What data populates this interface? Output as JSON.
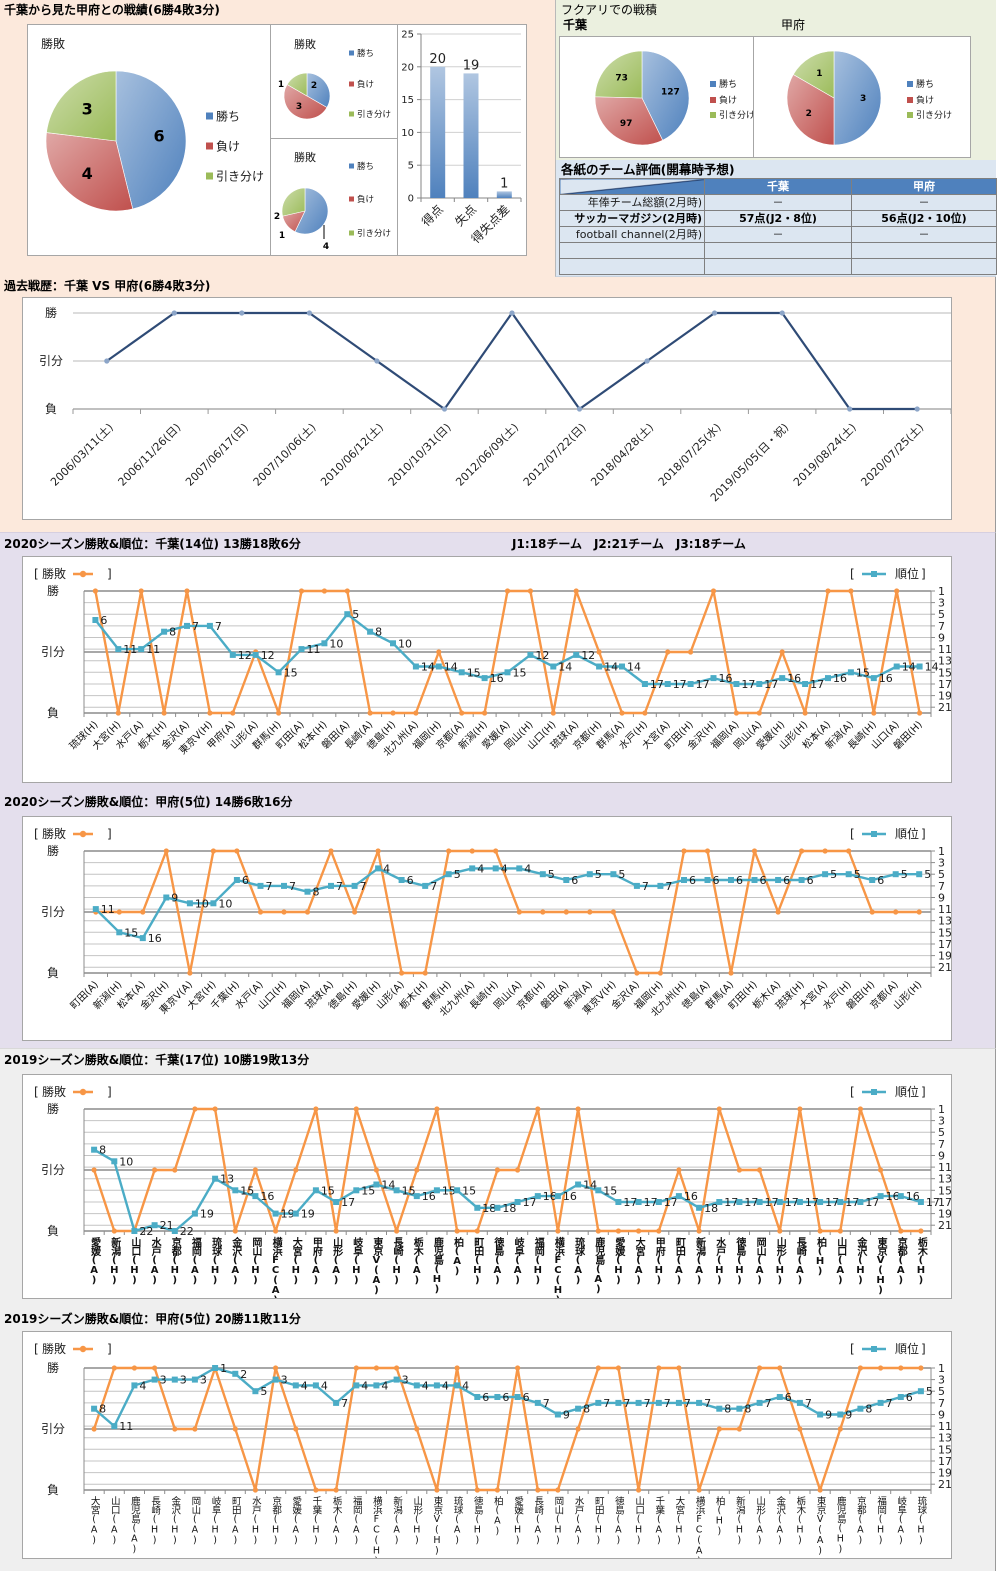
{
  "colors": {
    "win": "#4f81bd",
    "loss": "#c0504d",
    "draw": "#9bbb59",
    "bar": "#4f81bd",
    "history_line": "#2f4b76",
    "history_marker": "#8ca5c8",
    "result_line": "#f79646",
    "rank_line": "#4bacc6",
    "table_header": "#4f81bd",
    "table_body": "#dce6f1"
  },
  "ui": {
    "bracket_open": "[",
    "bracket_close": "]"
  },
  "top": {
    "title": "千葉から見た甲府との戦績(6勝4敗3分)",
    "fukuari_title": "フクアリでの戦積",
    "evaluation": {
      "title": "各紙のチーム評価(開幕時予想)",
      "headers": [
        "",
        "千葉",
        "甲府"
      ],
      "rows": [
        [
          "年俸チーム総額(2月時)",
          "－",
          "－"
        ],
        [
          "サッカーマガジン(2月時)",
          "57点(J2・8位)",
          "56点(J2・10位)"
        ],
        [
          "football channel(2月時)",
          "－",
          "－"
        ],
        [
          "",
          "",
          ""
        ],
        [
          "",
          "",
          ""
        ]
      ]
    }
  },
  "season_2020": {
    "league_info": "J1:18チーム　J2:21チーム　J3:18チーム"
  },
  "chart_data": [
    {
      "type": "pie",
      "title": "勝敗",
      "categories": [
        "勝ち",
        "負け",
        "引き分け"
      ],
      "values": [
        6,
        4,
        3
      ],
      "legend": "right"
    },
    {
      "type": "pie",
      "title": "勝敗",
      "categories": [
        "勝ち",
        "負け",
        "引き分け"
      ],
      "values": [
        2,
        3,
        1
      ],
      "legend": "right"
    },
    {
      "type": "pie",
      "title": "勝敗",
      "categories": [
        "勝ち",
        "負け",
        "引き分け"
      ],
      "values": [
        4,
        1,
        2
      ],
      "legend": "right"
    },
    {
      "type": "bar",
      "title": "",
      "categories": [
        "得点",
        "失点",
        "得失点差"
      ],
      "values": [
        20,
        19,
        1
      ],
      "xlabel": "",
      "ylabel": "",
      "ylim": [
        0,
        25
      ],
      "yticks": [
        0,
        5,
        10,
        15,
        20,
        25
      ],
      "grid": true,
      "legend": "none"
    },
    {
      "type": "pie",
      "team": "千葉",
      "categories": [
        "勝ち",
        "負け",
        "引き分け"
      ],
      "values": [
        127,
        97,
        73
      ],
      "legend": "right"
    },
    {
      "type": "pie",
      "team": "甲府",
      "categories": [
        "勝ち",
        "負け",
        "引き分け"
      ],
      "values": [
        3,
        2,
        1
      ],
      "legend": "right"
    },
    {
      "type": "line",
      "title": "過去戦歴：千葉 VS 甲府(6勝4敗3分)",
      "categories": [
        "2006/03/11(土)",
        "2006/11/26(日)",
        "2007/06/17(日)",
        "2007/10/06(土)",
        "2010/06/12(土)",
        "2010/10/31(日)",
        "2012/06/09(土)",
        "2012/07/22(日)",
        "2018/04/28(土)",
        "2018/07/25(水)",
        "2019/05/05(日・祝)",
        "2019/08/24(土)",
        "2020/07/25(土)"
      ],
      "values": [
        "引分",
        "勝",
        "勝",
        "勝",
        "引分",
        "負",
        "勝",
        "負",
        "引分",
        "勝",
        "勝",
        "負",
        "負"
      ],
      "y_categories": [
        "勝",
        "引分",
        "負"
      ],
      "grid": true,
      "legend": "none"
    },
    {
      "type": "line",
      "title": "2020シーズン勝敗&順位：千葉(14位) 13勝18敗6分",
      "categories": [
        "琉球(H)",
        "大宮(H)",
        "水戸(A)",
        "栃木(H)",
        "金沢(A)",
        "東京V(H)",
        "甲府(A)",
        "山形(A)",
        "群馬(H)",
        "町田(A)",
        "松本(H)",
        "磐田(A)",
        "長崎(A)",
        "徳島(H)",
        "北九州(A)",
        "福岡(H)",
        "京都(A)",
        "新潟(H)",
        "愛媛(A)",
        "岡山(H)",
        "山口(H)",
        "琉球(A)",
        "京都(H)",
        "群馬(A)",
        "水戸(H)",
        "大宮(A)",
        "町田(H)",
        "金沢(H)",
        "福岡(A)",
        "岡山(A)",
        "愛媛(H)",
        "山形(H)",
        "松本(A)",
        "新潟(A)",
        "長崎(H)",
        "山口(A)",
        "磐田(H)"
      ],
      "series": [
        {
          "name": "勝敗",
          "axis": "left",
          "values": [
            "勝",
            "負",
            "勝",
            "負",
            "勝",
            "負",
            "負",
            "引分",
            "負",
            "勝",
            "勝",
            "勝",
            "負",
            "負",
            "負",
            "引分",
            "負",
            "負",
            "勝",
            "勝",
            "負",
            "勝",
            "引分",
            "負",
            "負",
            "引分",
            "引分",
            "勝",
            "負",
            "負",
            "引分",
            "負",
            "勝",
            "勝",
            "負",
            "勝",
            "負"
          ]
        },
        {
          "name": "順位",
          "axis": "right",
          "values": [
            6,
            11,
            11,
            8,
            7,
            7,
            12,
            12,
            15,
            11,
            10,
            5,
            8,
            10,
            14,
            14,
            15,
            16,
            15,
            12,
            14,
            12,
            14,
            14,
            17,
            17,
            17,
            16,
            17,
            17,
            16,
            17,
            16,
            15,
            16,
            14,
            14
          ]
        }
      ],
      "y_left": {
        "categories": [
          "勝",
          "引分",
          "負"
        ]
      },
      "y_right": {
        "range": [
          1,
          22
        ],
        "reversed": true,
        "ticks": [
          1,
          3,
          5,
          7,
          9,
          11,
          13,
          15,
          17,
          19,
          21
        ]
      },
      "grid": true,
      "legend": "top"
    },
    {
      "type": "line",
      "title": "2020シーズン勝敗&順位：甲府(5位) 14勝6敗16分",
      "categories": [
        "町田(A)",
        "新潟(H)",
        "松本(A)",
        "金沢(H)",
        "東京V(A)",
        "大宮(H)",
        "千葉(H)",
        "水戸(A)",
        "山口(H)",
        "福岡(A)",
        "琉球(A)",
        "徳島(H)",
        "愛媛(H)",
        "山形(A)",
        "栃木(H)",
        "群馬(H)",
        "北九州(A)",
        "長崎(H)",
        "岡山(A)",
        "京都(H)",
        "磐田(A)",
        "新潟(A)",
        "東京V(H)",
        "金沢(A)",
        "福岡(H)",
        "北九州(H)",
        "徳島(A)",
        "群馬(A)",
        "町田(H)",
        "栃木(A)",
        "琉球(H)",
        "大宮(A)",
        "水戸(H)",
        "磐田(H)",
        "京都(A)",
        "山形(H)"
      ],
      "series": [
        {
          "name": "勝敗",
          "axis": "left",
          "values": [
            "引分",
            "引分",
            "引分",
            "勝",
            "負",
            "勝",
            "勝",
            "引分",
            "引分",
            "引分",
            "勝",
            "引分",
            "勝",
            "負",
            "負",
            "勝",
            "勝",
            "勝",
            "引分",
            "引分",
            "引分",
            "引分",
            "引分",
            "負",
            "負",
            "勝",
            "勝",
            "負",
            "勝",
            "引分",
            "勝",
            "勝",
            "勝",
            "引分",
            "引分",
            "引分"
          ]
        },
        {
          "name": "順位",
          "axis": "right",
          "values": [
            11,
            15,
            16,
            9,
            10,
            10,
            6,
            7,
            7,
            8,
            7,
            7,
            4,
            6,
            7,
            5,
            4,
            4,
            4,
            5,
            6,
            5,
            5,
            7,
            7,
            6,
            6,
            6,
            6,
            6,
            6,
            5,
            5,
            6,
            5,
            5
          ]
        }
      ],
      "y_left": {
        "categories": [
          "勝",
          "引分",
          "負"
        ]
      },
      "y_right": {
        "range": [
          1,
          22
        ],
        "reversed": true,
        "ticks": [
          1,
          3,
          5,
          7,
          9,
          11,
          13,
          15,
          17,
          19,
          21
        ]
      },
      "grid": true,
      "legend": "top"
    },
    {
      "type": "line",
      "title": "2019シーズン勝敗&順位：千葉(17位) 10勝19敗13分",
      "categories": [
        "愛媛(A)",
        "新潟(H)",
        "山口(H)",
        "水戸(A)",
        "京都(H)",
        "福岡(A)",
        "琉球(H)",
        "金沢(A)",
        "岡山(H)",
        "横浜FC(A)",
        "大宮(H)",
        "甲府(A)",
        "山形(A)",
        "岐阜(H)",
        "東京V(A)",
        "長崎(H)",
        "栃木(A)",
        "鹿児島(H)",
        "柏(A)",
        "町田(H)",
        "徳島(A)",
        "岐阜(A)",
        "福岡(H)",
        "横浜FC(H)",
        "琉球(A)",
        "鹿児島(A)",
        "愛媛(H)",
        "大宮(A)",
        "甲府(H)",
        "町田(A)",
        "新潟(A)",
        "水戸(H)",
        "徳島(H)",
        "岡山(A)",
        "山形(H)",
        "長崎(A)",
        "柏(H)",
        "山口(A)",
        "金沢(H)",
        "東京V(H)",
        "京都(A)",
        "栃木(H)"
      ],
      "series": [
        {
          "name": "勝敗",
          "axis": "left",
          "values": [
            "引分",
            "負",
            "負",
            "引分",
            "引分",
            "勝",
            "勝",
            "負",
            "引分",
            "負",
            "引分",
            "勝",
            "負",
            "勝",
            "引分",
            "負",
            "引分",
            "勝",
            "負",
            "負",
            "引分",
            "引分",
            "勝",
            "負",
            "勝",
            "負",
            "負",
            "負",
            "負",
            "引分",
            "負",
            "勝",
            "引分",
            "引分",
            "負",
            "勝",
            "負",
            "負",
            "勝",
            "引分",
            "負",
            "負"
          ]
        },
        {
          "name": "順位",
          "axis": "right",
          "values": [
            8,
            10,
            22,
            21,
            22,
            19,
            13,
            15,
            16,
            19,
            19,
            15,
            17,
            15,
            14,
            15,
            16,
            15,
            15,
            18,
            18,
            17,
            16,
            16,
            14,
            15,
            17,
            17,
            17,
            16,
            18,
            17,
            17,
            17,
            17,
            17,
            17,
            17,
            17,
            16,
            16,
            17
          ]
        }
      ],
      "y_left": {
        "categories": [
          "勝",
          "引分",
          "負"
        ]
      },
      "y_right": {
        "range": [
          1,
          22
        ],
        "reversed": true,
        "ticks": [
          1,
          3,
          5,
          7,
          9,
          11,
          13,
          15,
          17,
          19,
          21
        ]
      },
      "grid": true,
      "legend": "top"
    },
    {
      "type": "line",
      "title": "2019シーズン勝敗&順位：甲府(5位) 20勝11敗11分",
      "categories": [
        "大宮(A)",
        "山口(A)",
        "鹿児島(A)",
        "長崎(H)",
        "金沢(H)",
        "岡山(A)",
        "岐阜(H)",
        "町田(A)",
        "水戸(H)",
        "京都(H)",
        "愛媛(A)",
        "千葉(H)",
        "栃木(A)",
        "福岡(A)",
        "横浜FC(H)",
        "新潟(A)",
        "山形(H)",
        "東京V(H)",
        "琉球(A)",
        "徳島(H)",
        "柏(A)",
        "愛媛(H)",
        "長崎(A)",
        "岡山(H)",
        "水戸(A)",
        "町田(H)",
        "徳島(A)",
        "山口(H)",
        "千葉(A)",
        "大宮(H)",
        "横浜FC(A)",
        "柏(H)",
        "新潟(H)",
        "山形(A)",
        "金沢(A)",
        "栃木(H)",
        "東京V(A)",
        "鹿児島(H)",
        "京都(A)",
        "福岡(H)",
        "岐阜(A)",
        "琉球(H)"
      ],
      "series": [
        {
          "name": "勝敗",
          "axis": "left",
          "values": [
            "引分",
            "勝",
            "勝",
            "勝",
            "引分",
            "引分",
            "勝",
            "引分",
            "負",
            "勝",
            "引分",
            "負",
            "負",
            "勝",
            "勝",
            "勝",
            "引分",
            "負",
            "勝",
            "負",
            "負",
            "勝",
            "負",
            "負",
            "引分",
            "勝",
            "勝",
            "負",
            "勝",
            "勝",
            "負",
            "引分",
            "引分",
            "勝",
            "勝",
            "引分",
            "負",
            "引分",
            "勝",
            "勝",
            "勝",
            "勝"
          ]
        },
        {
          "name": "順位",
          "axis": "right",
          "values": [
            8,
            11,
            4,
            3,
            3,
            3,
            1,
            2,
            5,
            3,
            4,
            4,
            7,
            4,
            4,
            3,
            4,
            4,
            4,
            6,
            6,
            6,
            7,
            9,
            8,
            7,
            7,
            7,
            7,
            7,
            7,
            8,
            8,
            7,
            6,
            7,
            9,
            9,
            8,
            7,
            6,
            5
          ]
        }
      ],
      "y_left": {
        "categories": [
          "勝",
          "引分",
          "負"
        ]
      },
      "y_right": {
        "range": [
          1,
          22
        ],
        "reversed": true,
        "ticks": [
          1,
          3,
          5,
          7,
          9,
          11,
          13,
          15,
          17,
          19,
          21
        ]
      },
      "grid": true,
      "legend": "top"
    }
  ]
}
